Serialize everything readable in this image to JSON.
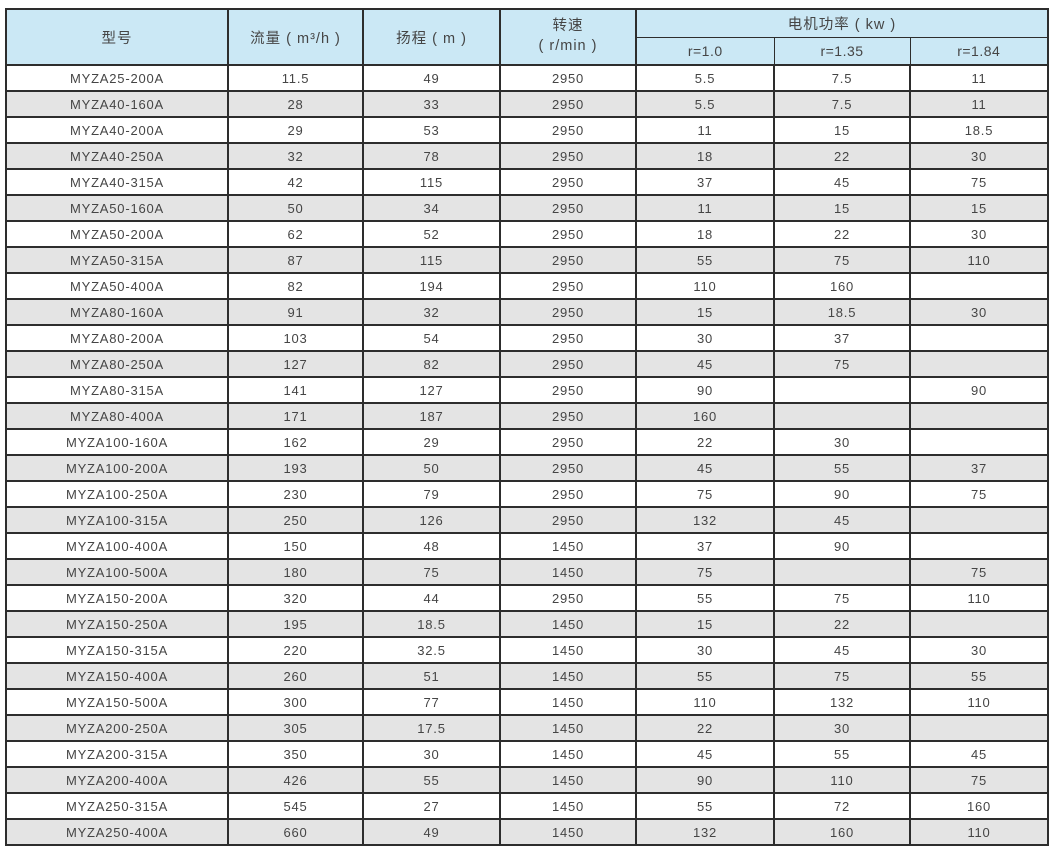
{
  "colors": {
    "header_bg": "#cbe8f5",
    "row_bg": "#ffffff",
    "row_alt_bg": "#e4e4e4",
    "border": "#2d2d2d",
    "text": "#454545"
  },
  "table": {
    "header": {
      "model": "型号",
      "flow": "流量 ( m³/h )",
      "head": "扬程 ( m )",
      "speed_line1": "转速",
      "speed_line2": "( r/min )",
      "power": "电机功率 ( kw )",
      "sub_r10": "r=1.0",
      "sub_r135": "r=1.35",
      "sub_r184": "r=1.84"
    },
    "rows": [
      [
        "MYZA25-200A",
        "11.5",
        "49",
        "2950",
        "5.5",
        "7.5",
        "11"
      ],
      [
        "MYZA40-160A",
        "28",
        "33",
        "2950",
        "5.5",
        "7.5",
        "11"
      ],
      [
        "MYZA40-200A",
        "29",
        "53",
        "2950",
        "11",
        "15",
        "18.5"
      ],
      [
        "MYZA40-250A",
        "32",
        "78",
        "2950",
        "18",
        "22",
        "30"
      ],
      [
        "MYZA40-315A",
        "42",
        "115",
        "2950",
        "37",
        "45",
        "75"
      ],
      [
        "MYZA50-160A",
        "50",
        "34",
        "2950",
        "11",
        "15",
        "15"
      ],
      [
        "MYZA50-200A",
        "62",
        "52",
        "2950",
        "18",
        "22",
        "30"
      ],
      [
        "MYZA50-315A",
        "87",
        "115",
        "2950",
        "55",
        "75",
        "110"
      ],
      [
        "MYZA50-400A",
        "82",
        "194",
        "2950",
        "110",
        "160",
        ""
      ],
      [
        "MYZA80-160A",
        "91",
        "32",
        "2950",
        "15",
        "18.5",
        "30"
      ],
      [
        "MYZA80-200A",
        "103",
        "54",
        "2950",
        "30",
        "37",
        ""
      ],
      [
        "MYZA80-250A",
        "127",
        "82",
        "2950",
        "45",
        "75",
        ""
      ],
      [
        "MYZA80-315A",
        "141",
        "127",
        "2950",
        "90",
        "",
        "90"
      ],
      [
        "MYZA80-400A",
        "171",
        "187",
        "2950",
        "160",
        "",
        ""
      ],
      [
        "MYZA100-160A",
        "162",
        "29",
        "2950",
        "22",
        "30",
        ""
      ],
      [
        "MYZA100-200A",
        "193",
        "50",
        "2950",
        "45",
        "55",
        "37"
      ],
      [
        "MYZA100-250A",
        "230",
        "79",
        "2950",
        "75",
        "90",
        "75"
      ],
      [
        "MYZA100-315A",
        "250",
        "126",
        "2950",
        "132",
        "45",
        ""
      ],
      [
        "MYZA100-400A",
        "150",
        "48",
        "1450",
        "37",
        "90",
        ""
      ],
      [
        "MYZA100-500A",
        "180",
        "75",
        "1450",
        "75",
        "",
        "75"
      ],
      [
        "MYZA150-200A",
        "320",
        "44",
        "2950",
        "55",
        "75",
        "110"
      ],
      [
        "MYZA150-250A",
        "195",
        "18.5",
        "1450",
        "15",
        "22",
        ""
      ],
      [
        "MYZA150-315A",
        "220",
        "32.5",
        "1450",
        "30",
        "45",
        "30"
      ],
      [
        "MYZA150-400A",
        "260",
        "51",
        "1450",
        "55",
        "75",
        "55"
      ],
      [
        "MYZA150-500A",
        "300",
        "77",
        "1450",
        "110",
        "132",
        "110"
      ],
      [
        "MYZA200-250A",
        "305",
        "17.5",
        "1450",
        "22",
        "30",
        ""
      ],
      [
        "MYZA200-315A",
        "350",
        "30",
        "1450",
        "45",
        "55",
        "45"
      ],
      [
        "MYZA200-400A",
        "426",
        "55",
        "1450",
        "90",
        "110",
        "75"
      ],
      [
        "MYZA250-315A",
        "545",
        "27",
        "1450",
        "55",
        "72",
        "160"
      ],
      [
        "MYZA250-400A",
        "660",
        "49",
        "1450",
        "132",
        "160",
        "110"
      ]
    ]
  }
}
